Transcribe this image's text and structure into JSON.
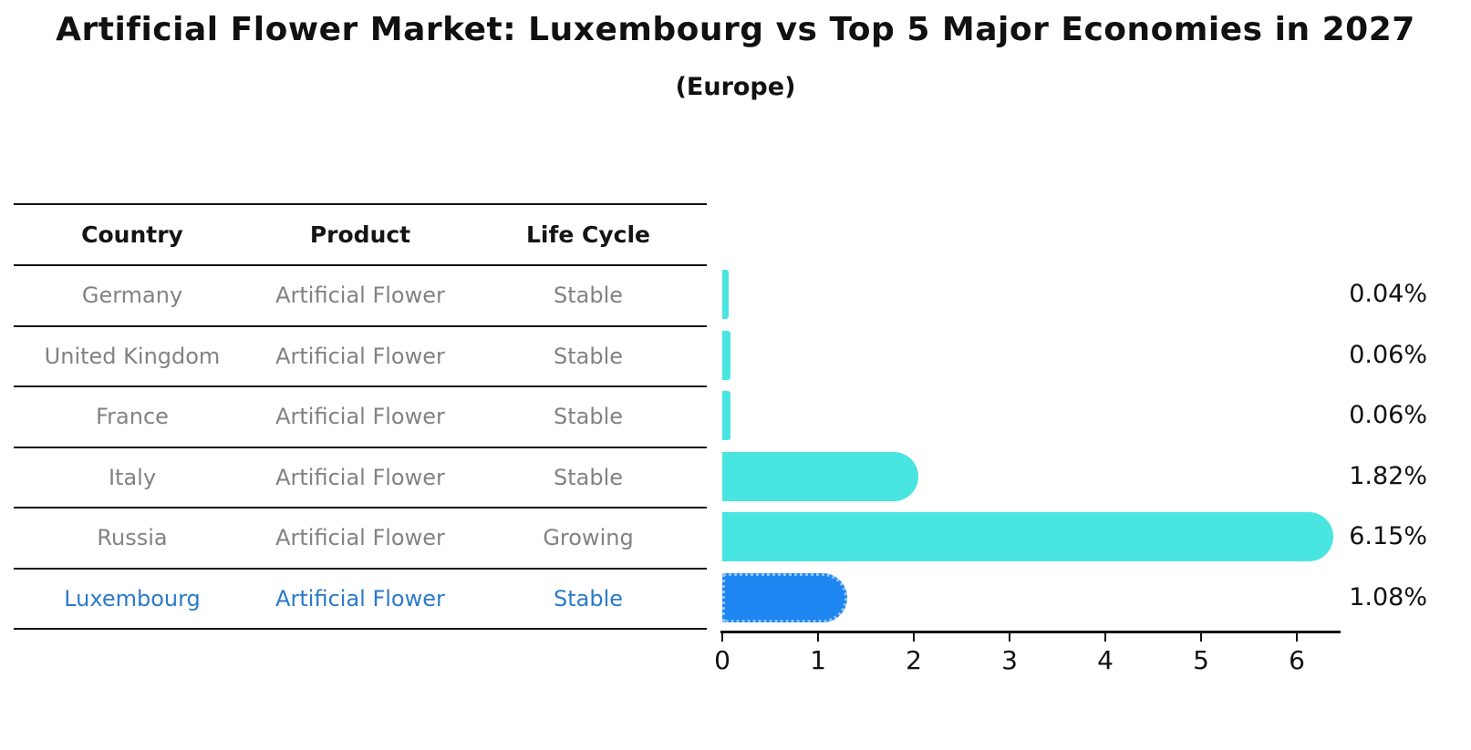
{
  "title": "Artificial Flower Market: Luxembourg vs Top 5 Major Economies in 2027",
  "subtitle": "(Europe)",
  "colors": {
    "bar_cyan": "#48e5e1",
    "bar_blue": "#1e86f0",
    "highlight_text": "#2a7ac9",
    "muted_text": "#828282",
    "text": "#111111"
  },
  "table": {
    "headers": [
      "Country",
      "Product",
      "Life Cycle"
    ],
    "rows": [
      {
        "country": "Germany",
        "product": "Artificial Flower",
        "life_cycle": "Stable",
        "highlighted": false
      },
      {
        "country": "United Kingdom",
        "product": "Artificial Flower",
        "life_cycle": "Stable",
        "highlighted": false
      },
      {
        "country": "France",
        "product": "Artificial Flower",
        "life_cycle": "Stable",
        "highlighted": false
      },
      {
        "country": "Italy",
        "product": "Artificial Flower",
        "life_cycle": "Stable",
        "highlighted": false
      },
      {
        "country": "Russia",
        "product": "Artificial Flower",
        "life_cycle": "Growing",
        "highlighted": false
      },
      {
        "country": "Luxembourg",
        "product": "Artificial Flower",
        "life_cycle": "Stable",
        "highlighted": true
      }
    ]
  },
  "chart_data": {
    "type": "bar",
    "orientation": "horizontal",
    "title": "Artificial Flower Market: Luxembourg vs Top 5 Major Economies in 2027",
    "subtitle": "(Europe)",
    "categories": [
      "Germany",
      "United Kingdom",
      "France",
      "Italy",
      "Russia",
      "Luxembourg"
    ],
    "values": [
      0.04,
      0.06,
      0.06,
      1.82,
      6.15,
      1.08
    ],
    "value_labels": [
      "0.04%",
      "0.06%",
      "0.06%",
      "1.82%",
      "6.15%",
      "1.08%"
    ],
    "highlight_index": 5,
    "bar_colors": [
      "#48e5e1",
      "#48e5e1",
      "#48e5e1",
      "#48e5e1",
      "#48e5e1",
      "#1e86f0"
    ],
    "x_ticks": [
      "0",
      "1",
      "2",
      "3",
      "4",
      "5",
      "6"
    ],
    "xlim": [
      0,
      6.46
    ],
    "xlabel": "",
    "ylabel": "",
    "grid": false,
    "legend": null
  }
}
